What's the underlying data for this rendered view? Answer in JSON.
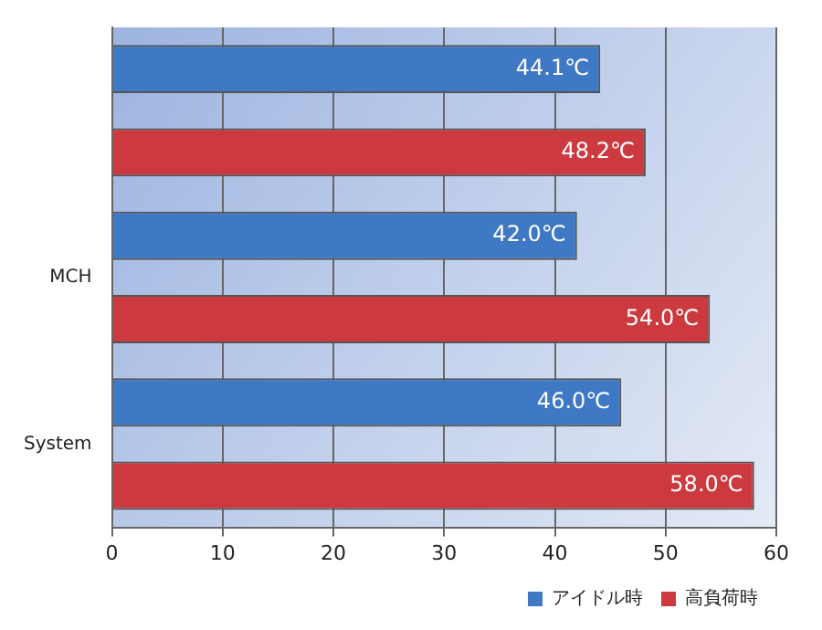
{
  "chart_data": {
    "type": "bar",
    "orientation": "horizontal",
    "categories": [
      null,
      "MCH",
      "System"
    ],
    "series": [
      {
        "name": "アイドル時",
        "color": "#3f78c4",
        "values": [
          44.1,
          42.0,
          46.0
        ],
        "value_labels": [
          "44.1℃",
          "42.0℃",
          "46.0℃"
        ]
      },
      {
        "name": "高負荷時",
        "color": "#cc3a3f",
        "values": [
          48.2,
          54.0,
          58.0
        ],
        "value_labels": [
          "48.2℃",
          "54.0℃",
          "58.0℃"
        ]
      }
    ],
    "xlim": [
      0,
      60
    ],
    "xticks": [
      0,
      10,
      20,
      30,
      40,
      50,
      60
    ],
    "grid": "x",
    "legend": "bottom right"
  }
}
